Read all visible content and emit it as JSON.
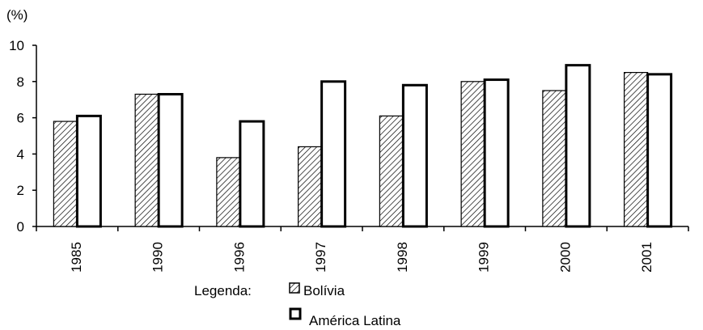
{
  "chart_data": {
    "type": "bar",
    "ylabel": "(%)",
    "ylim": [
      0,
      10
    ],
    "yticks": [
      "0",
      "2",
      "4",
      "6",
      "8",
      "10"
    ],
    "categories": [
      "1985",
      "1990",
      "1996",
      "1997",
      "1998",
      "1999",
      "2000",
      "2001"
    ],
    "series": [
      {
        "name": "Bolívia",
        "values": [
          5.8,
          7.3,
          3.8,
          4.4,
          6.1,
          8.0,
          7.5,
          8.5
        ]
      },
      {
        "name": "América Latina",
        "values": [
          6.1,
          7.3,
          5.8,
          8.0,
          7.8,
          8.1,
          8.9,
          8.4
        ]
      }
    ],
    "legend": {
      "title": "Legenda:",
      "placement": "bottom"
    },
    "grid": false
  }
}
